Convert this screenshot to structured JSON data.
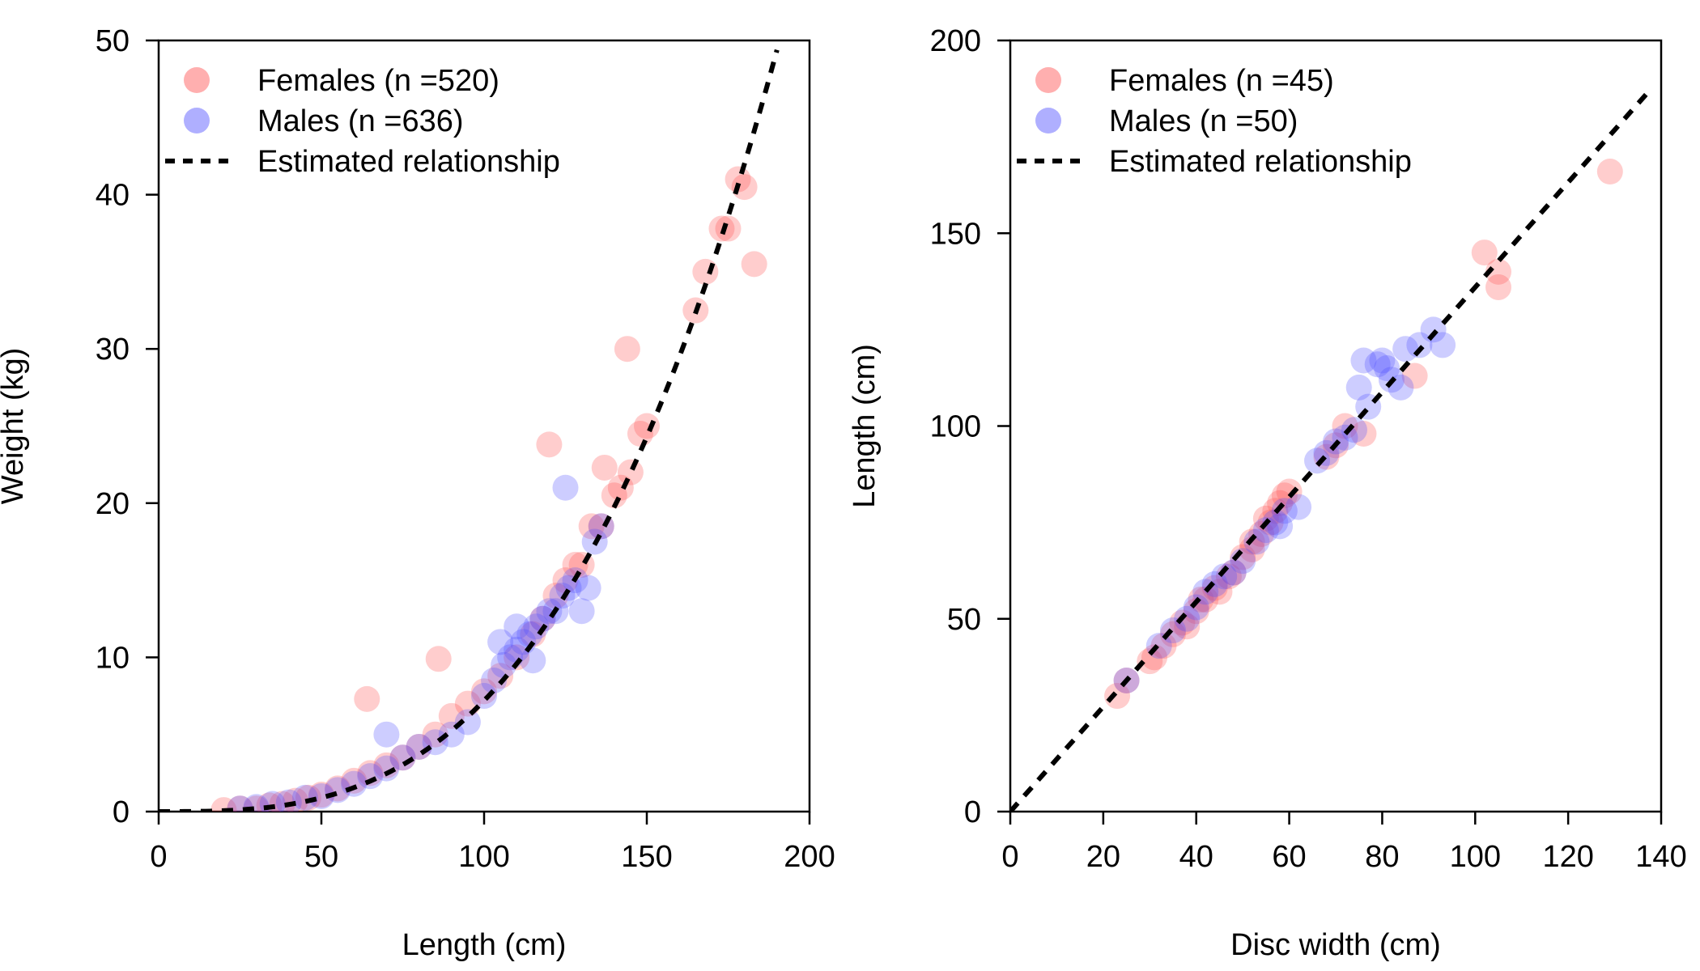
{
  "colors": {
    "female": "#ff4d4d",
    "male": "#4d4dff",
    "line": "#000000"
  },
  "chart_data": [
    {
      "type": "scatter",
      "xlabel": "Length (cm)",
      "ylabel": "Weight (kg)",
      "xlim": [
        0,
        200
      ],
      "ylim": [
        0,
        50
      ],
      "xticks": [
        "0",
        "50",
        "100",
        "150",
        "200"
      ],
      "yticks": [
        "0",
        "10",
        "20",
        "30",
        "40",
        "50"
      ],
      "legend": {
        "placement": "top-left",
        "entries": [
          {
            "label": "Females (n =520)",
            "kind": "point",
            "series": "female"
          },
          {
            "label": "Males (n =636)",
            "kind": "point",
            "series": "male"
          },
          {
            "label": "Estimated relationship",
            "kind": "dashed-line",
            "series": "line"
          }
        ]
      },
      "curve": {
        "model": "power",
        "a": 7.2e-06,
        "b": 3.0,
        "from": 0,
        "to": 190
      },
      "series": [
        {
          "name": "Females",
          "color_key": "female",
          "x": [
            20,
            25,
            30,
            34,
            38,
            42,
            46,
            50,
            55,
            60,
            65,
            70,
            75,
            80,
            85,
            90,
            95,
            100,
            105,
            110,
            115,
            118,
            122,
            125,
            128,
            130,
            133,
            136,
            140,
            142,
            145,
            148,
            150,
            165,
            168,
            173,
            175,
            178,
            180,
            183,
            64,
            86,
            120,
            144,
            137
          ],
          "y": [
            0.1,
            0.2,
            0.2,
            0.4,
            0.5,
            0.7,
            0.9,
            1.1,
            1.5,
            2.0,
            2.5,
            3.0,
            3.5,
            4.2,
            5.0,
            6.2,
            7.0,
            7.8,
            8.8,
            10.0,
            11.5,
            12.5,
            14.0,
            15.0,
            16.0,
            16.0,
            18.5,
            18.5,
            20.5,
            21.0,
            22.0,
            24.5,
            25.0,
            32.5,
            35.0,
            37.8,
            37.8,
            41.0,
            40.5,
            35.5,
            7.3,
            9.9,
            23.8,
            30.0,
            22.3
          ]
        },
        {
          "name": "Males",
          "color_key": "male",
          "x": [
            25,
            30,
            35,
            40,
            45,
            50,
            55,
            60,
            65,
            70,
            75,
            80,
            85,
            90,
            95,
            100,
            103,
            106,
            108,
            110,
            112,
            114,
            116,
            118,
            120,
            122,
            124,
            126,
            128,
            130,
            132,
            134,
            136,
            70,
            105,
            110,
            115,
            125
          ],
          "y": [
            0.2,
            0.3,
            0.5,
            0.6,
            0.9,
            1.0,
            1.4,
            1.8,
            2.3,
            2.8,
            3.5,
            4.2,
            4.5,
            5.0,
            5.8,
            7.5,
            8.5,
            9.5,
            10.0,
            10.5,
            11.0,
            11.5,
            12.0,
            12.5,
            13.0,
            13.0,
            14.0,
            14.5,
            15.0,
            13.0,
            14.5,
            17.5,
            18.5,
            5.0,
            11.0,
            12.0,
            9.8,
            21.0
          ]
        }
      ]
    },
    {
      "type": "scatter",
      "xlabel": "Disc width (cm)",
      "ylabel": "Length (cm)",
      "xlim": [
        0,
        140
      ],
      "ylim": [
        0,
        200
      ],
      "xticks": [
        "0",
        "20",
        "40",
        "60",
        "80",
        "100",
        "120",
        "140"
      ],
      "yticks": [
        "0",
        "50",
        "100",
        "150",
        "200"
      ],
      "legend": {
        "placement": "top-left",
        "entries": [
          {
            "label": "Females (n =45)",
            "kind": "point",
            "series": "female"
          },
          {
            "label": "Males (n =50)",
            "kind": "point",
            "series": "male"
          },
          {
            "label": "Estimated relationship",
            "kind": "dashed-line",
            "series": "line"
          }
        ]
      },
      "curve": {
        "model": "linear",
        "slope": 1.36,
        "intercept": 0,
        "from": 0,
        "to": 138
      },
      "series": [
        {
          "name": "Females",
          "color_key": "female",
          "x": [
            23,
            25,
            30,
            31,
            33,
            35,
            37,
            38,
            40,
            42,
            45,
            48,
            50,
            52,
            54,
            56,
            57,
            58,
            59,
            60,
            68,
            70,
            72,
            76,
            87,
            102,
            105,
            105,
            129,
            41,
            44,
            47,
            52,
            55
          ],
          "y": [
            30,
            34,
            39,
            40,
            43,
            46,
            49,
            48,
            52,
            55,
            57,
            62,
            66,
            70,
            72,
            75,
            78,
            80,
            82,
            83,
            92,
            95,
            100,
            98,
            113,
            145,
            140,
            136,
            166,
            55,
            58,
            61,
            68,
            76
          ]
        },
        {
          "name": "Males",
          "color_key": "male",
          "x": [
            25,
            32,
            35,
            38,
            40,
            42,
            44,
            46,
            48,
            50,
            53,
            55,
            57,
            59,
            62,
            66,
            68,
            70,
            72,
            74,
            75,
            76,
            77,
            79,
            80,
            81,
            82,
            84,
            85,
            88,
            91,
            93,
            58
          ],
          "y": [
            34,
            43,
            47,
            50,
            53,
            57,
            59,
            61,
            62,
            65,
            70,
            73,
            75,
            78,
            79,
            91,
            93,
            96,
            97,
            99,
            110,
            117,
            105,
            116,
            117,
            115,
            112,
            110,
            120,
            121,
            125,
            121,
            74
          ]
        }
      ]
    }
  ]
}
